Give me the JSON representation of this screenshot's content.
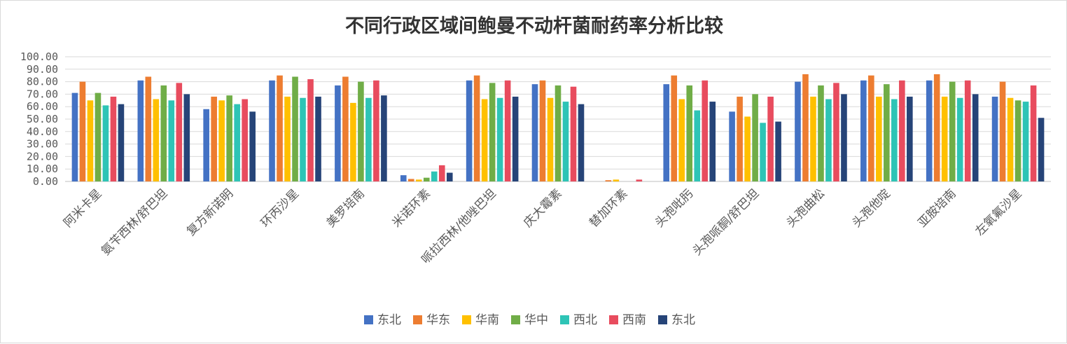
{
  "chart_data": {
    "type": "bar",
    "title": "不同行政区域间鲍曼不动杆菌耐药率分析比较",
    "xlabel": "",
    "ylabel": "",
    "ylim": [
      0,
      100
    ],
    "yticks": [
      "0.00",
      "10.00",
      "20.00",
      "30.00",
      "40.00",
      "50.00",
      "60.00",
      "70.00",
      "80.00",
      "90.00",
      "100.00"
    ],
    "grid": true,
    "legend_position": "bottom",
    "categories": [
      "阿米卡星",
      "氨苄西林/舒巴坦",
      "复方新诺明",
      "环丙沙星",
      "美罗培南",
      "米诺环素",
      "哌拉西林/他唑巴坦",
      "庆大霉素",
      "替加环素",
      "头孢吡肟",
      "头孢哌酮/舒巴坦",
      "头孢曲松",
      "头孢他啶",
      "亚胺培南",
      "左氧氟沙星"
    ],
    "series": [
      {
        "name": "东北",
        "color": "#4472C4",
        "values": [
          71,
          81,
          58,
          81,
          77,
          5,
          81,
          78,
          0,
          78,
          56,
          80,
          81,
          81,
          68
        ]
      },
      {
        "name": "华东",
        "color": "#ED7D31",
        "values": [
          80,
          84,
          68,
          85,
          84,
          2,
          85,
          81,
          1,
          85,
          68,
          86,
          85,
          86,
          80
        ]
      },
      {
        "name": "华南",
        "color": "#FFC000",
        "values": [
          65,
          66,
          65,
          68,
          63,
          1.5,
          66,
          67,
          1.5,
          66,
          52,
          68,
          68,
          68,
          67
        ]
      },
      {
        "name": "华中",
        "color": "#70AD47",
        "values": [
          71,
          77,
          69,
          84,
          80,
          3,
          79,
          77,
          0,
          77,
          70,
          77,
          78,
          80,
          65
        ]
      },
      {
        "name": "西北",
        "color": "#2EC4B6",
        "values": [
          61,
          65,
          62,
          67,
          67,
          8,
          67,
          64,
          0,
          57,
          47,
          66,
          66,
          67,
          64
        ]
      },
      {
        "name": "西南",
        "color": "#E84C5E",
        "values": [
          68,
          79,
          66,
          82,
          81,
          13,
          81,
          76,
          1.5,
          81,
          68,
          79,
          81,
          81,
          77
        ]
      },
      {
        "name": "东北",
        "color": "#264478",
        "values": [
          62,
          70,
          56,
          68,
          69,
          7,
          68,
          62,
          0,
          64,
          48,
          70,
          68,
          70,
          51
        ]
      }
    ]
  }
}
